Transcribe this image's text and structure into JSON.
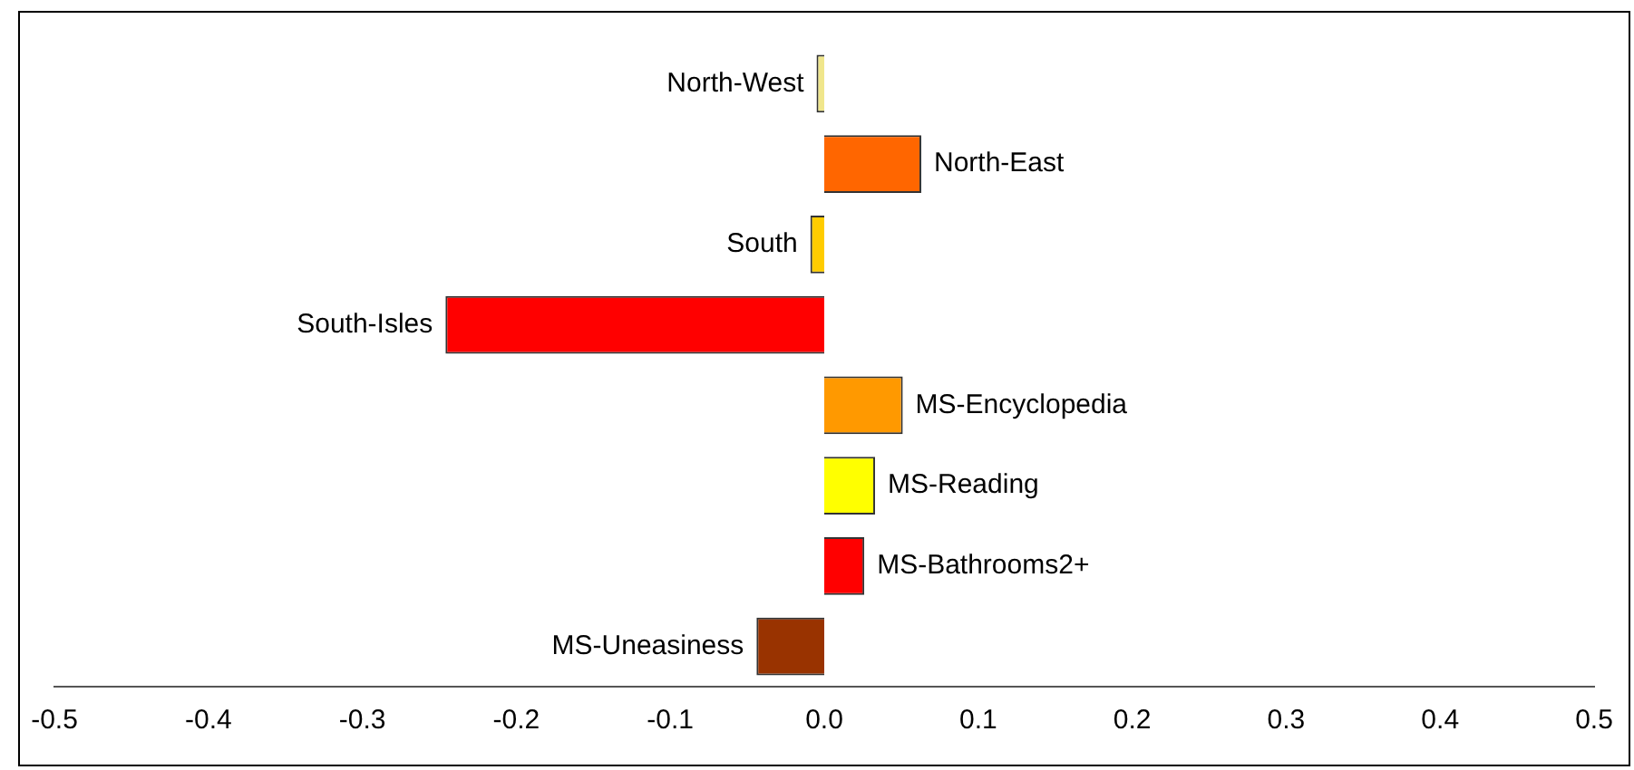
{
  "chart_data": {
    "type": "bar",
    "orientation": "horizontal",
    "categories": [
      "North-West",
      "North-East",
      "South",
      "South-Isles",
      "MS-Encyclopedia",
      "MS-Reading",
      "MS-Bathrooms2+",
      "MS-Uneasiness"
    ],
    "values": [
      -0.005,
      0.063,
      -0.009,
      -0.246,
      0.051,
      0.033,
      0.026,
      -0.044
    ],
    "colors": [
      "#f0e68c",
      "#ff6600",
      "#ffcc00",
      "#ff0000",
      "#ff9900",
      "#ffff00",
      "#ff0000",
      "#993300"
    ],
    "xlim": [
      -0.5,
      0.5
    ],
    "xticks": [
      {
        "value": -0.5,
        "label": "-0.5"
      },
      {
        "value": -0.4,
        "label": "-0.4"
      },
      {
        "value": -0.3,
        "label": "-0.3"
      },
      {
        "value": -0.2,
        "label": "-0.2"
      },
      {
        "value": -0.1,
        "label": "-0.1"
      },
      {
        "value": 0,
        "label": "0.0"
      },
      {
        "value": 0.1,
        "label": "0.1"
      },
      {
        "value": 0.2,
        "label": "0.2"
      },
      {
        "value": 0.3,
        "label": "0.3"
      },
      {
        "value": 0.4,
        "label": "0.4"
      },
      {
        "value": 0.5,
        "label": "0.5"
      }
    ],
    "tick_labels": "x",
    "grid": false,
    "legend": false
  }
}
